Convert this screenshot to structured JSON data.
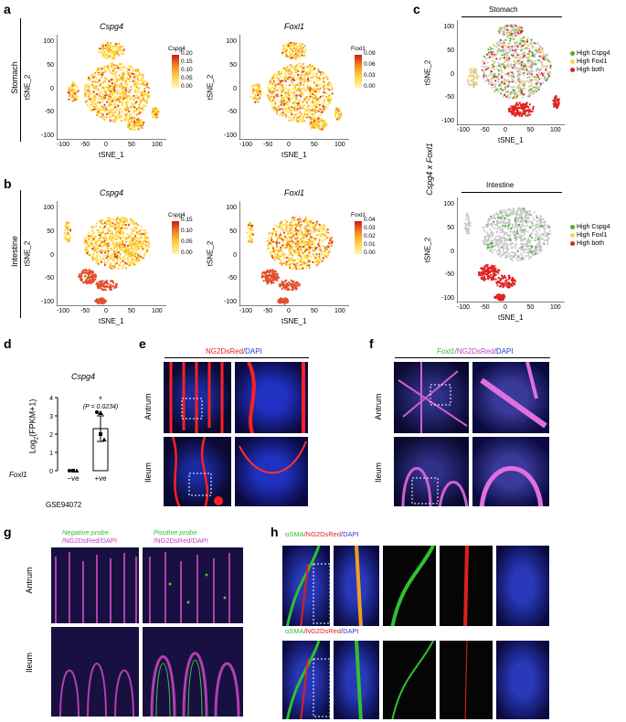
{
  "panels": {
    "a": "a",
    "b": "b",
    "c": "c",
    "d": "d",
    "e": "e",
    "f": "f",
    "g": "g",
    "h": "h"
  },
  "tsne": {
    "xlabel": "tSNE_1",
    "ylabel": "tSNE_2",
    "xticks": [
      "-100",
      "-50",
      "0",
      "50",
      "100"
    ],
    "yticks": [
      "100",
      "50",
      "0",
      "-50",
      "-100"
    ]
  },
  "row_labels": {
    "stomach": "Stomach",
    "intestine": "Intestine",
    "antrum": "Antrum",
    "ileum": "Ileum"
  },
  "a": {
    "left_title": "Cspg4",
    "right_title": "Foxl1",
    "left_cbar_title": "Cspg4",
    "left_cbar_ticks": [
      "0.20",
      "0.15",
      "0.10",
      "0.05",
      "0.00"
    ],
    "right_cbar_title": "Foxl1",
    "right_cbar_ticks": [
      "0.09",
      "0.06",
      "0.03",
      "0.00"
    ]
  },
  "b": {
    "left_title": "Cspg4",
    "right_title": "Foxl1",
    "left_cbar_title": "Cspg4",
    "left_cbar_ticks": [
      "0.15",
      "0.10",
      "0.05",
      "0.00"
    ],
    "right_cbar_title": "Foxl1",
    "right_cbar_ticks": [
      "0.04",
      "0.03",
      "0.02",
      "0.01",
      "0.00"
    ]
  },
  "c": {
    "side_label": "Cspg4 x Foxl1",
    "top_header": "Stomach",
    "bottom_header": "Intestine",
    "legend": [
      "High Cspg4",
      "High Foxl1",
      "High both"
    ],
    "legend_colors": [
      "#4caf3a",
      "#f5d94a",
      "#e02020"
    ]
  },
  "d": {
    "title": "Cspg4",
    "ylabel": "Log2(FPKM+1)",
    "ylabel_main": "Log",
    "ylabel_sub": "2",
    "ylabel_rest": "(FPKM+1)",
    "yticks": [
      "4",
      "3",
      "2",
      "1",
      "0"
    ],
    "group_label": "Foxl1",
    "categories": [
      "−ve",
      "+ve"
    ],
    "star": "*",
    "pvalue": "(P = 0.0234)",
    "dataset": "GSE94072"
  },
  "chart_data": {
    "type": "bar",
    "title": "Cspg4",
    "categories": [
      "−ve",
      "+ve"
    ],
    "values": [
      0.0,
      2.3
    ],
    "errors": [
      0.0,
      0.7
    ],
    "points": [
      [
        0,
        0,
        0
      ],
      [
        3.2,
        2.0,
        1.7
      ]
    ],
    "ylabel": "Log2(FPKM+1)",
    "ylim": [
      0,
      4
    ]
  },
  "e": {
    "header": "NG2DsRed/DAPI",
    "header_a": "NG2DsRed",
    "header_b": "/DAPI"
  },
  "f": {
    "header_a": "Foxl1",
    "header_b": "/NG2DsRed",
    "header_c": "/DAPI"
  },
  "g": {
    "left_header_1": "Negative probe",
    "left_header_2": "/NG2DsRed/DAPI",
    "right_header_1": "Positive probe",
    "right_header_2": "/NG2DsRed/DAPI"
  },
  "h": {
    "header_a": "αSMA",
    "header_b": "/NG2DsRed",
    "header_c": "/DAPI"
  }
}
